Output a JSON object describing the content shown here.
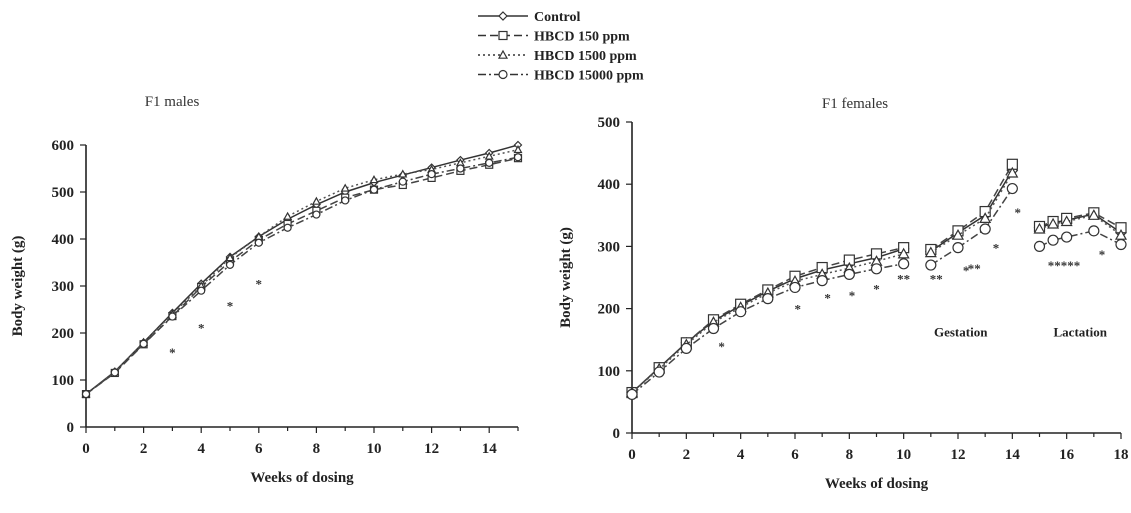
{
  "legend": {
    "entries": [
      "Control",
      "HBCD 150 ppm",
      "HBCD 1500 ppm",
      "HBCD 15000 ppm"
    ]
  },
  "chart_data": [
    {
      "type": "line",
      "title": "F1 males",
      "xlabel": "Weeks of dosing",
      "ylabel": "Body weight (g)",
      "xlim": [
        0,
        15
      ],
      "ylim": [
        0,
        600
      ],
      "xticks": [
        0,
        2,
        4,
        6,
        8,
        10,
        12,
        14
      ],
      "yticks": [
        0,
        100,
        200,
        300,
        400,
        500,
        600
      ],
      "legend_position": "top-center",
      "x": [
        0,
        1,
        2,
        3,
        4,
        5,
        6,
        7,
        8,
        9,
        10,
        11,
        12,
        13,
        14,
        15
      ],
      "series": [
        {
          "name": "Control",
          "style": "solid",
          "marker": "diamond",
          "values": [
            70,
            118,
            180,
            243,
            305,
            362,
            405,
            442,
            473,
            500,
            520,
            536,
            552,
            568,
            583,
            600
          ]
        },
        {
          "name": "HBCD 150 ppm",
          "style": "dashed",
          "marker": "square",
          "values": [
            70,
            115,
            176,
            236,
            298,
            352,
            398,
            432,
            460,
            488,
            505,
            515,
            530,
            545,
            558,
            572
          ]
        },
        {
          "name": "HBCD 1500 ppm",
          "style": "dotted",
          "marker": "triangle",
          "values": [
            70,
            117,
            180,
            240,
            300,
            360,
            405,
            448,
            480,
            508,
            526,
            538,
            548,
            562,
            576,
            590
          ]
        },
        {
          "name": "HBCD 15000 ppm",
          "style": "dashdot",
          "marker": "circle",
          "values": [
            70,
            116,
            177,
            235,
            290,
            345,
            392,
            424,
            452,
            482,
            505,
            522,
            538,
            550,
            562,
            574
          ]
        }
      ],
      "annotations": [
        {
          "text": "*",
          "x": 3,
          "y": 160
        },
        {
          "text": "*",
          "x": 4,
          "y": 212
        },
        {
          "text": "*",
          "x": 5,
          "y": 258
        },
        {
          "text": "*",
          "x": 6,
          "y": 305
        }
      ]
    },
    {
      "type": "line",
      "title": "F1 females",
      "xlabel": "Weeks of dosing",
      "ylabel": "Body weight (g)",
      "xlim": [
        0,
        18
      ],
      "ylim": [
        0,
        500
      ],
      "xticks": [
        0,
        2,
        4,
        6,
        8,
        10,
        12,
        14,
        16,
        18
      ],
      "yticks": [
        0,
        100,
        200,
        300,
        400,
        500
      ],
      "phase_labels": [
        {
          "text": "Gestation",
          "x": 12.1,
          "y": 155
        },
        {
          "text": "Lactation",
          "x": 16.5,
          "y": 155
        }
      ],
      "segments": [
        {
          "phase": "dosing",
          "x": [
            0,
            1,
            2,
            3,
            4,
            5,
            6,
            7,
            8,
            9,
            10
          ],
          "series": [
            {
              "name": "Control",
              "values": [
                65,
                105,
                145,
                180,
                205,
                228,
                248,
                262,
                272,
                282,
                296
              ]
            },
            {
              "name": "HBCD 150 ppm",
              "values": [
                65,
                105,
                145,
                182,
                207,
                230,
                252,
                266,
                278,
                288,
                298
              ]
            },
            {
              "name": "HBCD 1500 ppm",
              "values": [
                65,
                103,
                142,
                178,
                202,
                225,
                244,
                255,
                265,
                276,
                288
              ]
            },
            {
              "name": "HBCD 15000 ppm",
              "values": [
                62,
                98,
                136,
                168,
                195,
                216,
                234,
                245,
                255,
                264,
                272
              ]
            }
          ]
        },
        {
          "phase": "gestation",
          "x": [
            11,
            12,
            13,
            14
          ],
          "series": [
            {
              "name": "Control",
              "values": [
                292,
                322,
                350,
                422
              ]
            },
            {
              "name": "HBCD 150 ppm",
              "values": [
                295,
                325,
                356,
                432
              ]
            },
            {
              "name": "HBCD 1500 ppm",
              "values": [
                290,
                318,
                345,
                418
              ]
            },
            {
              "name": "HBCD 15000 ppm",
              "values": [
                270,
                298,
                328,
                393
              ]
            }
          ]
        },
        {
          "phase": "lactation",
          "x": [
            15,
            15.5,
            16,
            17,
            18
          ],
          "series": [
            {
              "name": "Control",
              "values": [
                330,
                338,
                342,
                352,
                322
              ]
            },
            {
              "name": "HBCD 150 ppm",
              "values": [
                332,
                340,
                345,
                354,
                330
              ]
            },
            {
              "name": "HBCD 1500 ppm",
              "values": [
                328,
                336,
                340,
                350,
                318
              ]
            },
            {
              "name": "HBCD 15000 ppm",
              "values": [
                300,
                310,
                315,
                325,
                303
              ]
            }
          ]
        }
      ],
      "annotations": [
        {
          "text": "*",
          "x": 3.3,
          "y": 140
        },
        {
          "text": "*",
          "x": 6.1,
          "y": 200
        },
        {
          "text": "*",
          "x": 7.2,
          "y": 218
        },
        {
          "text": "*",
          "x": 8.1,
          "y": 222
        },
        {
          "text": "*",
          "x": 9.0,
          "y": 232
        },
        {
          "text": "**",
          "x": 10.0,
          "y": 248
        },
        {
          "text": "**",
          "x": 11.2,
          "y": 248
        },
        {
          "text": "*",
          "x": 12.3,
          "y": 262
        },
        {
          "text": "**",
          "x": 12.6,
          "y": 265
        },
        {
          "text": "*",
          "x": 13.4,
          "y": 298
        },
        {
          "text": "*",
          "x": 14.2,
          "y": 355
        },
        {
          "text": "*****",
          "x": 15.9,
          "y": 270
        },
        {
          "text": "*",
          "x": 17.3,
          "y": 288
        }
      ]
    }
  ]
}
